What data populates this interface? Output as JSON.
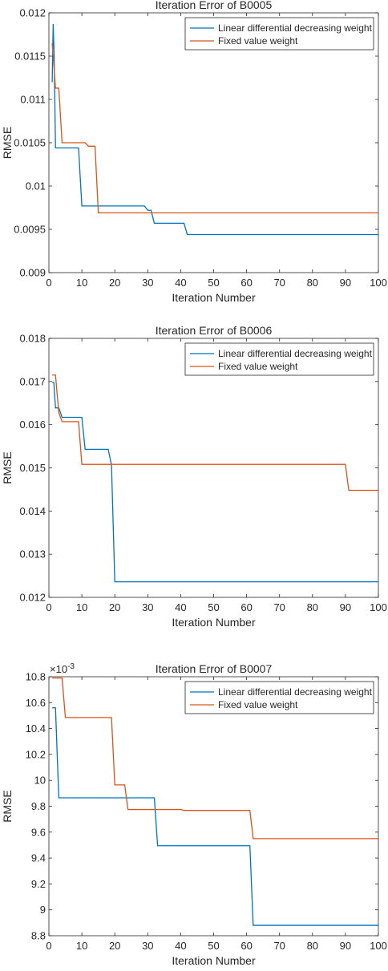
{
  "chart_data": [
    {
      "type": "line",
      "title": "Iteration Error of B0005",
      "xlabel": "Iteration Number",
      "ylabel": "RMSE",
      "xlim": [
        0,
        100
      ],
      "ylim": [
        0.009,
        0.012
      ],
      "xticks": [
        0,
        10,
        20,
        30,
        40,
        50,
        60,
        70,
        80,
        90,
        100
      ],
      "yticks": [
        0.009,
        0.0095,
        0.01,
        0.0105,
        0.011,
        0.0115,
        0.012
      ],
      "ytick_labels": [
        "0.009",
        "0.0095",
        "0.01",
        "0.0105",
        "0.011",
        "0.0115",
        "0.012"
      ],
      "exponent_label": "",
      "legend": "top-right",
      "grid": false,
      "series": [
        {
          "name": "Linear differential decreasing weight",
          "color": "#0072BD",
          "x": [
            1,
            1.3,
            1.6,
            2,
            9,
            10,
            29,
            30,
            31,
            32,
            41,
            42,
            100
          ],
          "y": [
            0.0112,
            0.01187,
            0.0115,
            0.01044,
            0.01044,
            0.00977,
            0.00977,
            0.00972,
            0.00972,
            0.00957,
            0.00957,
            0.00944,
            0.00944
          ]
        },
        {
          "name": "Fixed value weight",
          "color": "#D95319",
          "x": [
            1,
            1.5,
            2,
            3,
            4,
            11,
            12,
            14,
            15,
            100
          ],
          "y": [
            0.01165,
            0.0114,
            0.01113,
            0.01113,
            0.0105,
            0.0105,
            0.01046,
            0.01046,
            0.00969,
            0.00969
          ]
        }
      ]
    },
    {
      "type": "line",
      "title": "Iteration Error of B0006",
      "xlabel": "Iteration Number",
      "ylabel": "RMSE",
      "xlim": [
        0,
        100
      ],
      "ylim": [
        0.012,
        0.018
      ],
      "xticks": [
        0,
        10,
        20,
        30,
        40,
        50,
        60,
        70,
        80,
        90,
        100
      ],
      "yticks": [
        0.012,
        0.013,
        0.014,
        0.015,
        0.016,
        0.017,
        0.018
      ],
      "ytick_labels": [
        "0.012",
        "0.013",
        "0.014",
        "0.015",
        "0.016",
        "0.017",
        "0.018"
      ],
      "exponent_label": "",
      "legend": "top-right",
      "grid": false,
      "series": [
        {
          "name": "Linear differential decreasing weight",
          "color": "#0072BD",
          "x": [
            1,
            1.5,
            2,
            3,
            4,
            10,
            11,
            18,
            19,
            20,
            100
          ],
          "y": [
            0.01698,
            0.01698,
            0.01639,
            0.01639,
            0.01617,
            0.01617,
            0.01543,
            0.01543,
            0.01506,
            0.01236,
            0.01236
          ]
        },
        {
          "name": "Fixed value weight",
          "color": "#D95319",
          "x": [
            1,
            2,
            3,
            4,
            9,
            10,
            90,
            91,
            100
          ],
          "y": [
            0.01715,
            0.01715,
            0.01628,
            0.01607,
            0.01607,
            0.01508,
            0.01508,
            0.01448,
            0.01448
          ]
        }
      ]
    },
    {
      "type": "line",
      "title": "Iteration Error of B0007",
      "xlabel": "Iteration Number",
      "ylabel": "RMSE",
      "xlim": [
        0,
        100
      ],
      "ylim": [
        8.8,
        10.8
      ],
      "xticks": [
        0,
        10,
        20,
        30,
        40,
        50,
        60,
        70,
        80,
        90,
        100
      ],
      "yticks": [
        8.8,
        9,
        9.2,
        9.4,
        9.6,
        9.8,
        10,
        10.2,
        10.4,
        10.6,
        10.8
      ],
      "ytick_labels": [
        "8.8",
        "9",
        "9.2",
        "9.4",
        "9.6",
        "9.8",
        "10",
        "10.2",
        "10.4",
        "10.6",
        "10.8"
      ],
      "exponent_label": "×10",
      "exponent_power": "-3",
      "legend": "top-right",
      "grid": false,
      "series": [
        {
          "name": "Linear differential decreasing weight",
          "color": "#0072BD",
          "x": [
            1,
            2,
            3,
            32,
            33,
            61,
            62,
            100
          ],
          "y": [
            10.56,
            10.56,
            9.865,
            9.865,
            9.495,
            9.495,
            8.88,
            8.88
          ]
        },
        {
          "name": "Fixed value weight",
          "color": "#D95319",
          "x": [
            1,
            4,
            5,
            19,
            20,
            23,
            24,
            40,
            41,
            61,
            62,
            100
          ],
          "y": [
            10.79,
            10.79,
            10.485,
            10.485,
            9.965,
            9.965,
            9.775,
            9.775,
            9.768,
            9.768,
            9.55,
            9.55
          ]
        }
      ]
    }
  ]
}
